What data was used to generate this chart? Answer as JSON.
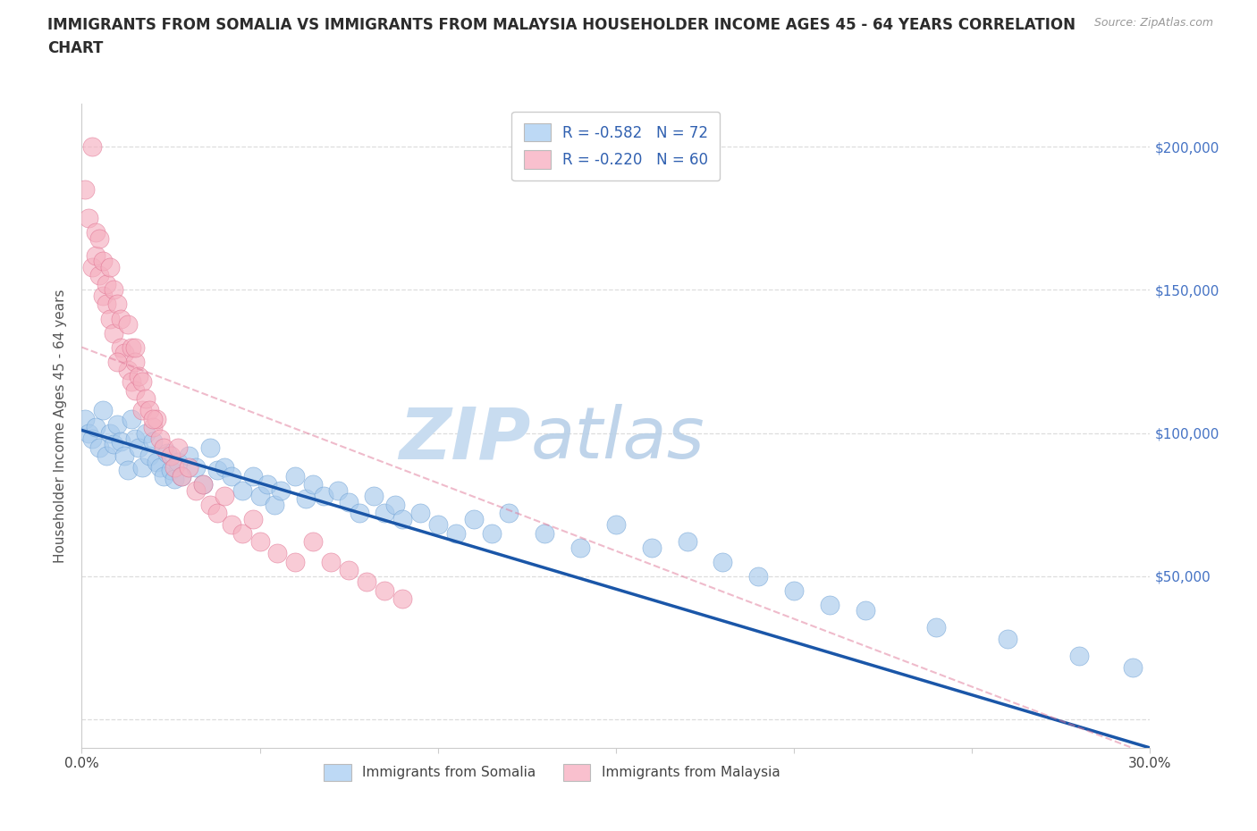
{
  "title_line1": "IMMIGRANTS FROM SOMALIA VS IMMIGRANTS FROM MALAYSIA HOUSEHOLDER INCOME AGES 45 - 64 YEARS CORRELATION",
  "title_line2": "CHART",
  "source_text": "Source: ZipAtlas.com",
  "ylabel": "Householder Income Ages 45 - 64 years",
  "xlim": [
    0.0,
    0.3
  ],
  "ylim": [
    -10000,
    215000
  ],
  "ytick_values": [
    0,
    50000,
    100000,
    150000,
    200000
  ],
  "ytick_labels": [
    "",
    "$50,000",
    "$100,000",
    "$150,000",
    "$200,000"
  ],
  "somalia_color": "#A8CAEC",
  "malaysia_color": "#F5B0C0",
  "somalia_edge": "#6B9FD4",
  "malaysia_edge": "#E07090",
  "trend_somalia_color": "#1A56A8",
  "trend_malaysia_color": "#E07898",
  "watermark_zip_color": "#C8DCF0",
  "watermark_atlas_color": "#B8D0E8",
  "legend_somalia_label": "R = -0.582   N = 72",
  "legend_malaysia_label": "R = -0.220   N = 60",
  "legend_somalia_color": "#BDD9F5",
  "legend_malaysia_color": "#F9C0CE",
  "bottom_legend_somalia": "Immigrants from Somalia",
  "bottom_legend_malaysia": "Immigrants from Malaysia",
  "grid_color": "#DDDDDD",
  "background_color": "#FFFFFF",
  "title_color": "#2C2C2C",
  "axis_label_color": "#555555",
  "tick_color_y": "#4472C4",
  "tick_color_x": "#444444",
  "somalia_trend_x0": 0.0,
  "somalia_trend_y0": 101000,
  "somalia_trend_x1": 0.3,
  "somalia_trend_y1": -10000,
  "malaysia_trend_x0": 0.0,
  "malaysia_trend_y0": 130000,
  "malaysia_trend_x1": 0.295,
  "malaysia_trend_y1": -10000,
  "somalia_x": [
    0.001,
    0.002,
    0.003,
    0.004,
    0.005,
    0.006,
    0.007,
    0.008,
    0.009,
    0.01,
    0.011,
    0.012,
    0.013,
    0.014,
    0.015,
    0.016,
    0.017,
    0.018,
    0.019,
    0.02,
    0.021,
    0.022,
    0.023,
    0.024,
    0.025,
    0.026,
    0.027,
    0.028,
    0.03,
    0.032,
    0.034,
    0.036,
    0.038,
    0.04,
    0.042,
    0.045,
    0.048,
    0.05,
    0.052,
    0.054,
    0.056,
    0.06,
    0.063,
    0.065,
    0.068,
    0.072,
    0.075,
    0.078,
    0.082,
    0.085,
    0.088,
    0.09,
    0.095,
    0.1,
    0.105,
    0.11,
    0.115,
    0.12,
    0.13,
    0.14,
    0.15,
    0.16,
    0.17,
    0.18,
    0.19,
    0.2,
    0.21,
    0.22,
    0.24,
    0.26,
    0.28,
    0.295
  ],
  "somalia_y": [
    105000,
    100000,
    98000,
    102000,
    95000,
    108000,
    92000,
    100000,
    96000,
    103000,
    97000,
    92000,
    87000,
    105000,
    98000,
    95000,
    88000,
    100000,
    92000,
    97000,
    90000,
    88000,
    85000,
    93000,
    87000,
    84000,
    90000,
    85000,
    92000,
    88000,
    82000,
    95000,
    87000,
    88000,
    85000,
    80000,
    85000,
    78000,
    82000,
    75000,
    80000,
    85000,
    77000,
    82000,
    78000,
    80000,
    76000,
    72000,
    78000,
    72000,
    75000,
    70000,
    72000,
    68000,
    65000,
    70000,
    65000,
    72000,
    65000,
    60000,
    68000,
    60000,
    62000,
    55000,
    50000,
    45000,
    40000,
    38000,
    32000,
    28000,
    22000,
    18000
  ],
  "malaysia_x": [
    0.001,
    0.002,
    0.003,
    0.003,
    0.004,
    0.004,
    0.005,
    0.005,
    0.006,
    0.006,
    0.007,
    0.007,
    0.008,
    0.008,
    0.009,
    0.009,
    0.01,
    0.011,
    0.011,
    0.012,
    0.013,
    0.013,
    0.014,
    0.014,
    0.015,
    0.015,
    0.016,
    0.017,
    0.017,
    0.018,
    0.019,
    0.02,
    0.021,
    0.022,
    0.023,
    0.025,
    0.026,
    0.027,
    0.028,
    0.03,
    0.032,
    0.034,
    0.036,
    0.038,
    0.04,
    0.042,
    0.045,
    0.048,
    0.05,
    0.055,
    0.06,
    0.065,
    0.07,
    0.075,
    0.08,
    0.085,
    0.09,
    0.01,
    0.015,
    0.02
  ],
  "malaysia_y": [
    185000,
    175000,
    200000,
    158000,
    170000,
    162000,
    168000,
    155000,
    148000,
    160000,
    152000,
    145000,
    158000,
    140000,
    150000,
    135000,
    145000,
    140000,
    130000,
    128000,
    138000,
    122000,
    130000,
    118000,
    125000,
    115000,
    120000,
    118000,
    108000,
    112000,
    108000,
    102000,
    105000,
    98000,
    95000,
    92000,
    88000,
    95000,
    85000,
    88000,
    80000,
    82000,
    75000,
    72000,
    78000,
    68000,
    65000,
    70000,
    62000,
    58000,
    55000,
    62000,
    55000,
    52000,
    48000,
    45000,
    42000,
    125000,
    130000,
    105000
  ]
}
